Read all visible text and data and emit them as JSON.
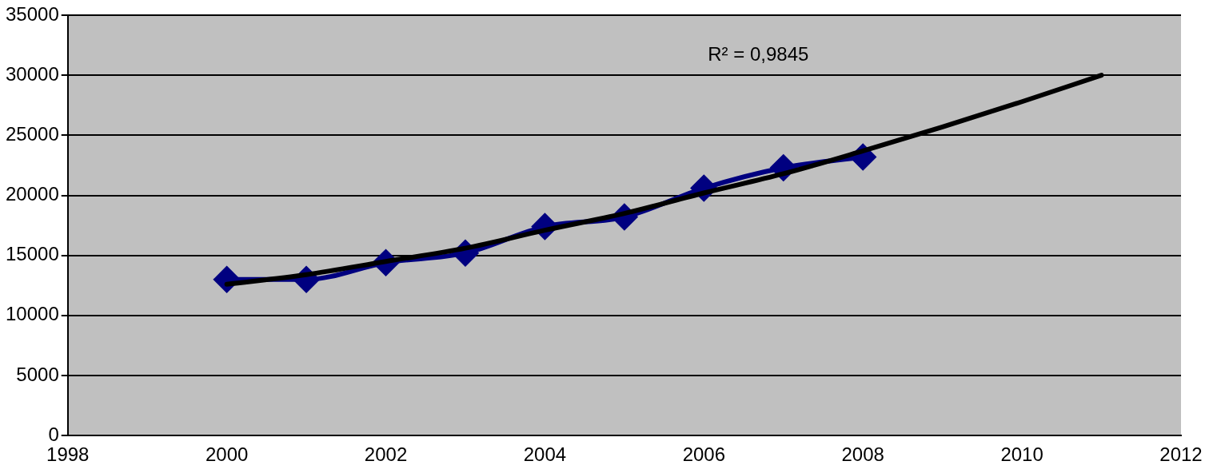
{
  "chart_data": {
    "type": "line",
    "xlim": [
      1998,
      2012
    ],
    "xticks": [
      1998,
      2000,
      2002,
      2004,
      2006,
      2008,
      2010,
      2012
    ],
    "ylim": [
      0,
      35000
    ],
    "yticks": [
      0,
      5000,
      10000,
      15000,
      20000,
      25000,
      30000,
      35000
    ],
    "grid": "y",
    "legend": false,
    "series": [
      {
        "type": "line",
        "color": "#000080",
        "marker": "diamond",
        "x": [
          2000,
          2001,
          2002,
          2003,
          2004,
          2005,
          2006,
          2007,
          2008
        ],
        "values": [
          13000,
          13000,
          14400,
          15200,
          17400,
          18200,
          20600,
          22300,
          23200
        ]
      },
      {
        "type": "line",
        "color": "#000000",
        "marker": "none",
        "x": [
          2000,
          2001,
          2002,
          2003,
          2004,
          2005,
          2006,
          2007,
          2008,
          2009,
          2010,
          2011
        ],
        "values": [
          12600,
          13400,
          14500,
          15600,
          17100,
          18500,
          20200,
          21800,
          23700,
          25700,
          27800,
          30000
        ]
      }
    ],
    "annotations": [
      "R² = 0,9845"
    ]
  }
}
